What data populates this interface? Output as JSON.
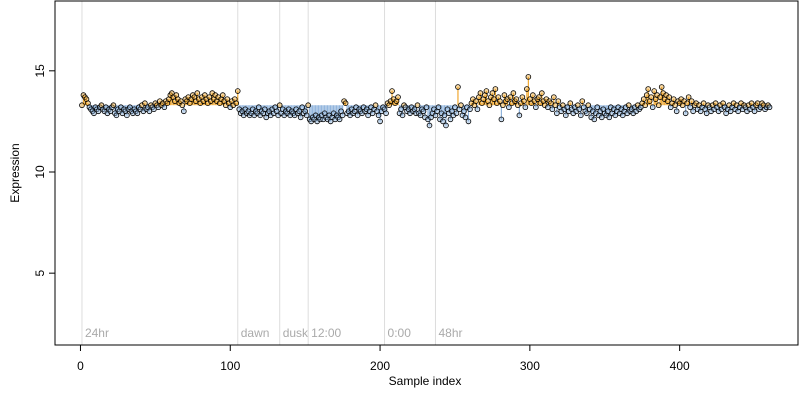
{
  "chart_data": {
    "type": "scatter",
    "xlabel": "Sample index",
    "ylabel": "Expression",
    "xlim": [
      -17,
      479
    ],
    "ylim": [
      1.45,
      18.45
    ],
    "xticks": [
      0,
      100,
      200,
      300,
      400
    ],
    "yticks": [
      5,
      10,
      15
    ],
    "baseline": 13.3,
    "above_color": "#f0a830",
    "below_color": "#8fb3dc",
    "point_outline": "#000000",
    "annotations": [
      {
        "x": 1,
        "label": "24hr"
      },
      {
        "x": 105,
        "label": "dawn"
      },
      {
        "x": 133,
        "label": "dusk"
      },
      {
        "x": 152,
        "label": "12:00"
      },
      {
        "x": 203,
        "label": "0:00"
      },
      {
        "x": 237,
        "label": "48hr"
      }
    ],
    "x": [
      1,
      2,
      3,
      4,
      5,
      6,
      7,
      8,
      9,
      10,
      11,
      12,
      13,
      14,
      15,
      16,
      17,
      18,
      19,
      20,
      21,
      22,
      23,
      24,
      25,
      26,
      27,
      28,
      29,
      30,
      31,
      32,
      33,
      34,
      35,
      36,
      37,
      38,
      39,
      40,
      41,
      42,
      43,
      44,
      45,
      46,
      47,
      48,
      49,
      50,
      51,
      52,
      53,
      54,
      55,
      56,
      57,
      58,
      59,
      60,
      61,
      62,
      63,
      64,
      65,
      66,
      67,
      68,
      69,
      70,
      71,
      72,
      73,
      74,
      75,
      76,
      77,
      78,
      79,
      80,
      81,
      82,
      83,
      84,
      85,
      86,
      87,
      88,
      89,
      90,
      91,
      92,
      93,
      94,
      95,
      96,
      97,
      98,
      99,
      100,
      101,
      102,
      103,
      104,
      105,
      106,
      107,
      108,
      109,
      110,
      111,
      112,
      113,
      114,
      115,
      116,
      117,
      118,
      119,
      120,
      121,
      122,
      123,
      124,
      125,
      126,
      127,
      128,
      129,
      130,
      131,
      132,
      133,
      134,
      135,
      136,
      137,
      138,
      139,
      140,
      141,
      142,
      143,
      144,
      145,
      146,
      147,
      148,
      149,
      150,
      151,
      152,
      153,
      154,
      155,
      156,
      157,
      158,
      159,
      160,
      161,
      162,
      163,
      164,
      165,
      166,
      167,
      168,
      169,
      170,
      171,
      172,
      173,
      174,
      175,
      176,
      177,
      178,
      179,
      180,
      181,
      182,
      183,
      184,
      185,
      186,
      187,
      188,
      189,
      190,
      191,
      192,
      193,
      194,
      195,
      196,
      197,
      198,
      199,
      200,
      201,
      202,
      203,
      204,
      205,
      206,
      207,
      208,
      209,
      210,
      211,
      212,
      213,
      214,
      215,
      216,
      217,
      218,
      219,
      220,
      221,
      222,
      223,
      224,
      225,
      226,
      227,
      228,
      229,
      230,
      231,
      232,
      233,
      234,
      235,
      236,
      237,
      238,
      239,
      240,
      241,
      242,
      243,
      244,
      245,
      246,
      247,
      248,
      249,
      250,
      251,
      252,
      253,
      254,
      255,
      256,
      257,
      258,
      259,
      260,
      261,
      262,
      263,
      264,
      265,
      266,
      267,
      268,
      269,
      270,
      271,
      272,
      273,
      274,
      275,
      276,
      277,
      278,
      279,
      280,
      281,
      282,
      283,
      284,
      285,
      286,
      287,
      288,
      289,
      290,
      291,
      292,
      293,
      294,
      295,
      296,
      297,
      298,
      299,
      300,
      301,
      302,
      303,
      304,
      305,
      306,
      307,
      308,
      309,
      310,
      311,
      312,
      313,
      314,
      315,
      316,
      317,
      318,
      319,
      320,
      321,
      322,
      323,
      324,
      325,
      326,
      327,
      328,
      329,
      330,
      331,
      332,
      333,
      334,
      335,
      336,
      337,
      338,
      339,
      340,
      341,
      342,
      343,
      344,
      345,
      346,
      347,
      348,
      349,
      350,
      351,
      352,
      353,
      354,
      355,
      356,
      357,
      358,
      359,
      360,
      361,
      362,
      363,
      364,
      365,
      366,
      367,
      368,
      369,
      370,
      371,
      372,
      373,
      374,
      375,
      376,
      377,
      378,
      379,
      380,
      381,
      382,
      383,
      384,
      385,
      386,
      387,
      388,
      389,
      390,
      391,
      392,
      393,
      394,
      395,
      396,
      397,
      398,
      399,
      400,
      401,
      402,
      403,
      404,
      405,
      406,
      407,
      408,
      409,
      410,
      411,
      412,
      413,
      414,
      415,
      416,
      417,
      418,
      419,
      420,
      421,
      422,
      423,
      424,
      425,
      426,
      427,
      428,
      429,
      430,
      431,
      432,
      433,
      434,
      435,
      436,
      437,
      438,
      439,
      440,
      441,
      442,
      443,
      444,
      445,
      446,
      447,
      448,
      449,
      450,
      451,
      452,
      453,
      454,
      455,
      456,
      457,
      458,
      459,
      460
    ],
    "values": [
      13.3,
      13.8,
      13.7,
      13.6,
      13.4,
      13.2,
      13.1,
      13.0,
      12.9,
      13.2,
      13.1,
      13.0,
      13.2,
      13.3,
      13.1,
      13.0,
      13.2,
      12.9,
      13.1,
      13.0,
      13.2,
      13.3,
      12.9,
      12.8,
      13.1,
      13.0,
      13.2,
      12.9,
      13.1,
      13.0,
      12.8,
      13.1,
      13.2,
      13.0,
      12.9,
      13.1,
      13.0,
      12.9,
      13.2,
      13.1,
      13.3,
      13.0,
      13.4,
      13.1,
      13.2,
      13.0,
      13.3,
      13.2,
      13.1,
      13.4,
      13.3,
      13.2,
      13.5,
      13.3,
      13.4,
      13.2,
      13.5,
      13.4,
      13.6,
      13.8,
      13.9,
      13.7,
      13.5,
      13.8,
      13.6,
      13.4,
      13.5,
      13.3,
      13.0,
      13.6,
      13.5,
      13.7,
      13.4,
      13.6,
      13.8,
      13.7,
      13.5,
      13.9,
      13.6,
      13.4,
      13.7,
      13.5,
      13.8,
      13.6,
      13.4,
      13.7,
      13.5,
      13.9,
      13.6,
      13.8,
      13.5,
      13.7,
      13.4,
      13.6,
      13.8,
      13.5,
      13.3,
      13.6,
      13.4,
      13.2,
      13.5,
      13.3,
      13.6,
      13.4,
      14.0,
      13.1,
      12.9,
      13.0,
      12.8,
      13.1,
      12.9,
      13.0,
      12.8,
      12.9,
      13.1,
      12.8,
      13.0,
      12.9,
      13.2,
      12.8,
      13.0,
      12.9,
      13.1,
      12.7,
      12.9,
      13.0,
      12.8,
      13.1,
      12.9,
      13.2,
      13.0,
      12.8,
      13.3,
      12.9,
      13.1,
      12.8,
      13.0,
      12.9,
      13.1,
      12.8,
      13.0,
      12.9,
      12.8,
      13.1,
      12.9,
      13.0,
      12.7,
      13.2,
      12.9,
      13.0,
      12.8,
      13.3,
      12.6,
      12.5,
      12.7,
      12.6,
      12.8,
      12.5,
      12.7,
      12.6,
      12.8,
      12.6,
      12.9,
      12.7,
      12.6,
      12.8,
      12.5,
      12.7,
      12.9,
      12.6,
      12.8,
      12.7,
      12.6,
      13.0,
      12.8,
      13.5,
      13.4,
      12.9,
      13.0,
      12.8,
      13.1,
      12.9,
      13.0,
      13.2,
      12.8,
      13.1,
      13.0,
      12.9,
      13.2,
      13.0,
      13.1,
      12.8,
      13.0,
      13.2,
      12.9,
      13.1,
      13.3,
      13.0,
      12.8,
      12.5,
      13.0,
      13.2,
      13.1,
      12.9,
      13.4,
      13.3,
      13.5,
      14.0,
      13.6,
      13.4,
      13.5,
      13.7,
      12.9,
      13.1,
      12.8,
      13.3,
      13.2,
      13.0,
      13.1,
      12.9,
      13.2,
      13.0,
      13.1,
      12.9,
      13.3,
      12.9,
      12.8,
      13.1,
      13.0,
      12.7,
      13.2,
      12.6,
      12.3,
      12.7,
      12.9,
      13.1,
      12.8,
      13.0,
      13.2,
      12.6,
      12.9,
      12.5,
      12.8,
      12.3,
      13.1,
      12.9,
      12.6,
      13.0,
      12.8,
      13.2,
      12.9,
      14.2,
      13.1,
      13.3,
      12.8,
      13.0,
      12.7,
      13.2,
      12.5,
      13.1,
      13.4,
      13.6,
      13.3,
      13.5,
      13.1,
      13.7,
      13.9,
      13.4,
      13.6,
      13.8,
      14.0,
      13.5,
      13.3,
      13.7,
      13.9,
      13.6,
      14.1,
      13.4,
      13.7,
      13.5,
      12.6,
      13.3,
      13.8,
      13.5,
      13.6,
      13.2,
      13.7,
      13.4,
      13.9,
      13.5,
      13.6,
      13.3,
      12.8,
      13.4,
      13.7,
      13.5,
      13.2,
      14.1,
      14.7,
      13.6,
      13.4,
      13.8,
      13.5,
      13.2,
      13.6,
      13.7,
      13.4,
      13.9,
      13.5,
      13.3,
      13.6,
      13.2,
      13.5,
      13.4,
      13.1,
      13.7,
      13.3,
      12.9,
      13.5,
      13.2,
      13.0,
      13.3,
      13.1,
      12.8,
      13.2,
      13.0,
      13.4,
      13.1,
      12.9,
      13.2,
      13.0,
      13.3,
      13.1,
      12.8,
      13.5,
      13.2,
      13.0,
      12.9,
      13.3,
      13.1,
      12.7,
      13.0,
      12.6,
      12.9,
      13.2,
      12.8,
      13.0,
      12.7,
      13.1,
      12.9,
      12.8,
      13.0,
      12.7,
      13.2,
      12.9,
      13.1,
      12.8,
      13.0,
      13.2,
      12.9,
      13.1,
      12.8,
      13.0,
      13.2,
      12.9,
      13.3,
      13.0,
      13.1,
      12.9,
      13.2,
      13.0,
      13.3,
      13.1,
      13.2,
      13.4,
      13.6,
      13.3,
      13.8,
      14.1,
      13.5,
      13.7,
      13.2,
      14.0,
      13.6,
      13.8,
      13.3,
      13.7,
      14.2,
      13.9,
      13.6,
      13.8,
      13.5,
      13.7,
      13.2,
      13.4,
      13.6,
      13.3,
      13.0,
      13.5,
      13.4,
      13.6,
      13.3,
      13.5,
      12.9,
      13.4,
      13.7,
      13.2,
      13.5,
      13.0,
      13.3,
      13.4,
      13.1,
      13.3,
      13.0,
      13.2,
      13.4,
      13.1,
      12.9,
      13.3,
      13.2,
      13.0,
      13.3,
      13.1,
      13.4,
      13.2,
      13.0,
      13.3,
      13.1,
      13.4,
      13.2,
      12.9,
      13.1,
      13.3,
      13.0,
      13.2,
      13.4,
      13.1,
      13.3,
      13.0,
      13.2,
      13.4,
      13.1,
      13.3,
      13.2,
      13.0,
      13.3,
      13.1,
      13.4,
      13.2,
      13.0,
      13.3,
      13.4,
      13.1,
      13.2,
      13.4,
      13.3,
      13.1,
      13.2,
      13.3,
      13.2
    ]
  }
}
